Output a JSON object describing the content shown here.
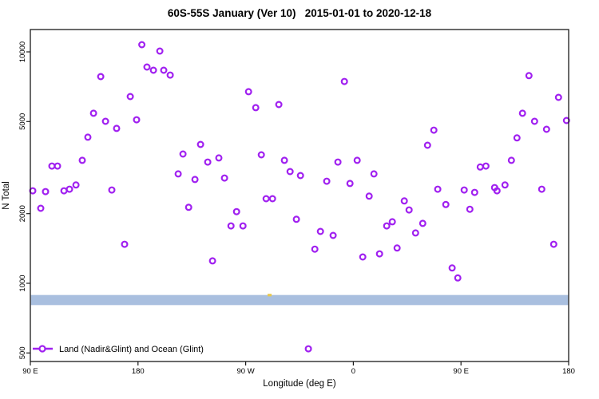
{
  "title": "60S-55S January (Ver 10)   2015-01-01 to 2020-12-18",
  "chart_data": {
    "type": "scatter",
    "title": "60S-55S January (Ver 10)   2015-01-01 to 2020-12-18",
    "xlabel": "Longitude (deg E)",
    "ylabel": "N Total",
    "x_scale": "linear",
    "y_scale": "log",
    "xlim": [
      90,
      540
    ],
    "ylim": [
      450,
      12500
    ],
    "grid": false,
    "x_ticks": [
      {
        "value": 90,
        "label": "90 E"
      },
      {
        "value": 180,
        "label": "180"
      },
      {
        "value": 270,
        "label": "90 W"
      },
      {
        "value": 360,
        "label": "0"
      },
      {
        "value": 450,
        "label": "90 E"
      },
      {
        "value": 540,
        "label": "180"
      }
    ],
    "y_ticks": [
      {
        "value": 500,
        "label": "500"
      },
      {
        "value": 1000,
        "label": "1000"
      },
      {
        "value": 2000,
        "label": "2000"
      },
      {
        "value": 5000,
        "label": "5000"
      },
      {
        "value": 10000,
        "label": "10000"
      }
    ],
    "band": {
      "n_min": 805,
      "n_max": 890,
      "color": "#A9BFDF"
    },
    "band_tick": {
      "lon": 290,
      "n": 890,
      "color": "#E9C94D"
    },
    "legend": {
      "label": "Land (Nadir&Glint) and Ocean (Glint)",
      "position": "bottom-left"
    },
    "series": [
      {
        "name": "Land (Nadir&Glint) and Ocean (Glint)",
        "marker": "open-circle",
        "color": "#A020F0",
        "points": [
          [
            183.2,
            10740
          ],
          [
            198.2,
            10080
          ],
          [
            187.5,
            8600
          ],
          [
            192.9,
            8330
          ],
          [
            201.5,
            8330
          ],
          [
            206.9,
            7940
          ],
          [
            148.8,
            7820
          ],
          [
            173.5,
            6410
          ],
          [
            142.8,
            5430
          ],
          [
            152.8,
            5010
          ],
          [
            162.1,
            4670
          ],
          [
            178.8,
            5090
          ],
          [
            138.1,
            4280
          ],
          [
            133.4,
            3400
          ],
          [
            108.0,
            3210
          ],
          [
            112.7,
            3210
          ],
          [
            92.0,
            2510
          ],
          [
            102.7,
            2490
          ],
          [
            118.1,
            2510
          ],
          [
            122.7,
            2550
          ],
          [
            128.1,
            2660
          ],
          [
            158.1,
            2530
          ],
          [
            272.4,
            6730
          ],
          [
            278.4,
            5740
          ],
          [
            297.7,
            5920
          ],
          [
            232.3,
            3980
          ],
          [
            217.6,
            3620
          ],
          [
            238.3,
            3340
          ],
          [
            247.6,
            3480
          ],
          [
            213.6,
            2970
          ],
          [
            227.6,
            2810
          ],
          [
            252.3,
            2850
          ],
          [
            283.1,
            3590
          ],
          [
            302.4,
            3400
          ],
          [
            307.1,
            3040
          ],
          [
            315.8,
            2920
          ],
          [
            352.5,
            7450
          ],
          [
            427.3,
            4590
          ],
          [
            422.0,
            3950
          ],
          [
            347.1,
            3340
          ],
          [
            363.2,
            3400
          ],
          [
            377.2,
            2970
          ],
          [
            337.8,
            2760
          ],
          [
            357.2,
            2700
          ],
          [
            506.8,
            7890
          ],
          [
            531.5,
            6360
          ],
          [
            501.4,
            5430
          ],
          [
            511.5,
            5010
          ],
          [
            521.5,
            4630
          ],
          [
            538.2,
            5050
          ],
          [
            496.8,
            4250
          ],
          [
            492.1,
            3400
          ],
          [
            466.1,
            3180
          ],
          [
            470.8,
            3210
          ],
          [
            430.6,
            2550
          ],
          [
            452.7,
            2530
          ],
          [
            461.4,
            2470
          ],
          [
            478.1,
            2590
          ],
          [
            480.1,
            2510
          ],
          [
            486.8,
            2660
          ],
          [
            517.5,
            2550
          ],
          [
            98.7,
            2110
          ],
          [
            168.8,
            1475
          ],
          [
            287.1,
            2320
          ],
          [
            292.4,
            2320
          ],
          [
            222.3,
            2130
          ],
          [
            262.4,
            2040
          ],
          [
            257.7,
            1770
          ],
          [
            267.7,
            1770
          ],
          [
            312.4,
            1890
          ],
          [
            242.3,
            1250
          ],
          [
            373.2,
            2380
          ],
          [
            402.6,
            2270
          ],
          [
            406.6,
            2075
          ],
          [
            387.9,
            1770
          ],
          [
            392.6,
            1845
          ],
          [
            418.0,
            1815
          ],
          [
            412.0,
            1650
          ],
          [
            332.5,
            1675
          ],
          [
            343.1,
            1610
          ],
          [
            327.8,
            1405
          ],
          [
            367.9,
            1300
          ],
          [
            381.9,
            1340
          ],
          [
            396.6,
            1420
          ],
          [
            322.4,
            521
          ],
          [
            437.3,
            2190
          ],
          [
            457.4,
            2090
          ],
          [
            527.5,
            1475
          ],
          [
            442.6,
            1165
          ],
          [
            447.3,
            1055
          ]
        ]
      }
    ],
    "colors": {
      "marker": "#A020F0",
      "band": "#A9BFDF",
      "frame": "#1a1a1a",
      "text": "#000000"
    }
  }
}
